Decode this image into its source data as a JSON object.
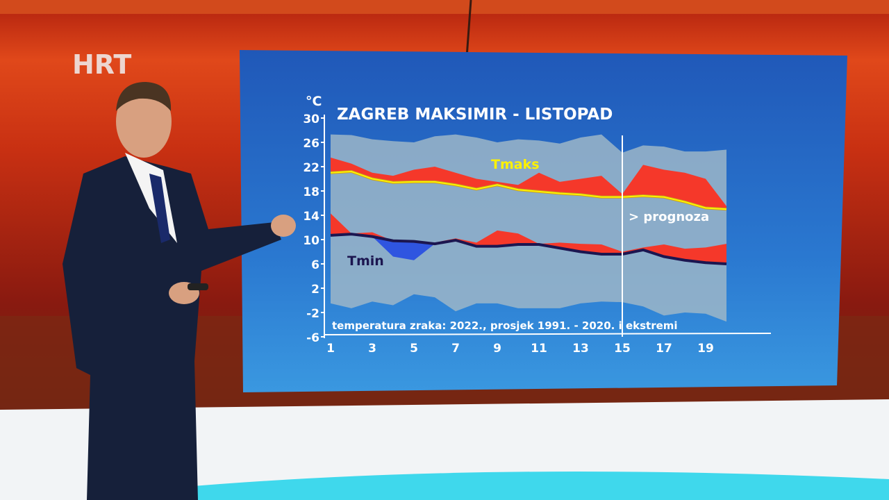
{
  "broadcaster": {
    "logo_text": "HRT"
  },
  "chart_data": {
    "type": "area",
    "title": "ZAGREB MAKSIMIR - LISTOPAD",
    "ylabel": "°C",
    "caption": "temperatura zraka: 2022., prosjek 1991. - 2020. i ekstremi",
    "forecast_label": "> prognoza",
    "forecast_from_day": 15,
    "ylim": [
      -6,
      30
    ],
    "yticks": [
      30,
      26,
      22,
      18,
      14,
      10,
      6,
      2,
      -2,
      -6
    ],
    "xticks": [
      1,
      3,
      5,
      7,
      9,
      11,
      13,
      15,
      17,
      19
    ],
    "x": [
      1,
      2,
      3,
      4,
      5,
      6,
      7,
      8,
      9,
      10,
      11,
      12,
      13,
      14,
      15,
      16,
      17,
      18,
      19,
      20
    ],
    "series": [
      {
        "name": "Ekstremi max",
        "values": [
          27.3,
          27.2,
          26.5,
          26.2,
          26.0,
          27.0,
          27.3,
          26.8,
          26.0,
          26.5,
          26.3,
          25.8,
          26.8,
          27.3,
          24.3,
          25.5,
          25.3,
          24.5,
          24.5,
          24.8
        ]
      },
      {
        "name": "Ekstremi min",
        "values": [
          -0.5,
          -1.3,
          -0.2,
          -0.8,
          1.0,
          0.5,
          -1.8,
          -0.5,
          -0.5,
          -1.3,
          -1.3,
          -1.3,
          -0.5,
          -0.2,
          -0.3,
          -1.0,
          -2.5,
          -2.0,
          -2.2,
          -3.5
        ]
      },
      {
        "name": "Tmaks 2022",
        "values": [
          23.5,
          22.5,
          21.0,
          20.5,
          21.5,
          22.0,
          21.0,
          20.0,
          19.5,
          19.0,
          21.0,
          19.5,
          20.0,
          20.5,
          17.5,
          22.3,
          21.5,
          21.0,
          20.0,
          15.5
        ]
      },
      {
        "name": "Tmaks",
        "values": [
          21.0,
          21.2,
          20.0,
          19.4,
          19.5,
          19.5,
          19.0,
          18.3,
          19.0,
          18.2,
          17.9,
          17.6,
          17.4,
          17.0,
          17.0,
          17.2,
          17.0,
          16.2,
          15.2,
          15.0
        ]
      },
      {
        "name": "Tmin 2022",
        "values": [
          14.3,
          11.0,
          11.2,
          7.2,
          6.6,
          9.5,
          10.2,
          9.5,
          11.5,
          11.0,
          9.3,
          9.5,
          9.3,
          9.2,
          8.0,
          8.7,
          9.2,
          8.5,
          8.7,
          9.3
        ]
      },
      {
        "name": "Tmin",
        "values": [
          10.7,
          10.9,
          10.5,
          9.8,
          9.7,
          9.3,
          9.9,
          8.9,
          8.9,
          9.2,
          9.2,
          8.6,
          8.0,
          7.6,
          7.6,
          8.3,
          7.2,
          6.6,
          6.2,
          6.0
        ]
      }
    ],
    "colors": {
      "extreme_band": "#9cb6c8",
      "above_avg": "#f5382a",
      "below_avg": "#2f55e0",
      "tmaks_line": "#fff200",
      "tmin_line": "#1c1650",
      "text": "#ffffff"
    }
  }
}
